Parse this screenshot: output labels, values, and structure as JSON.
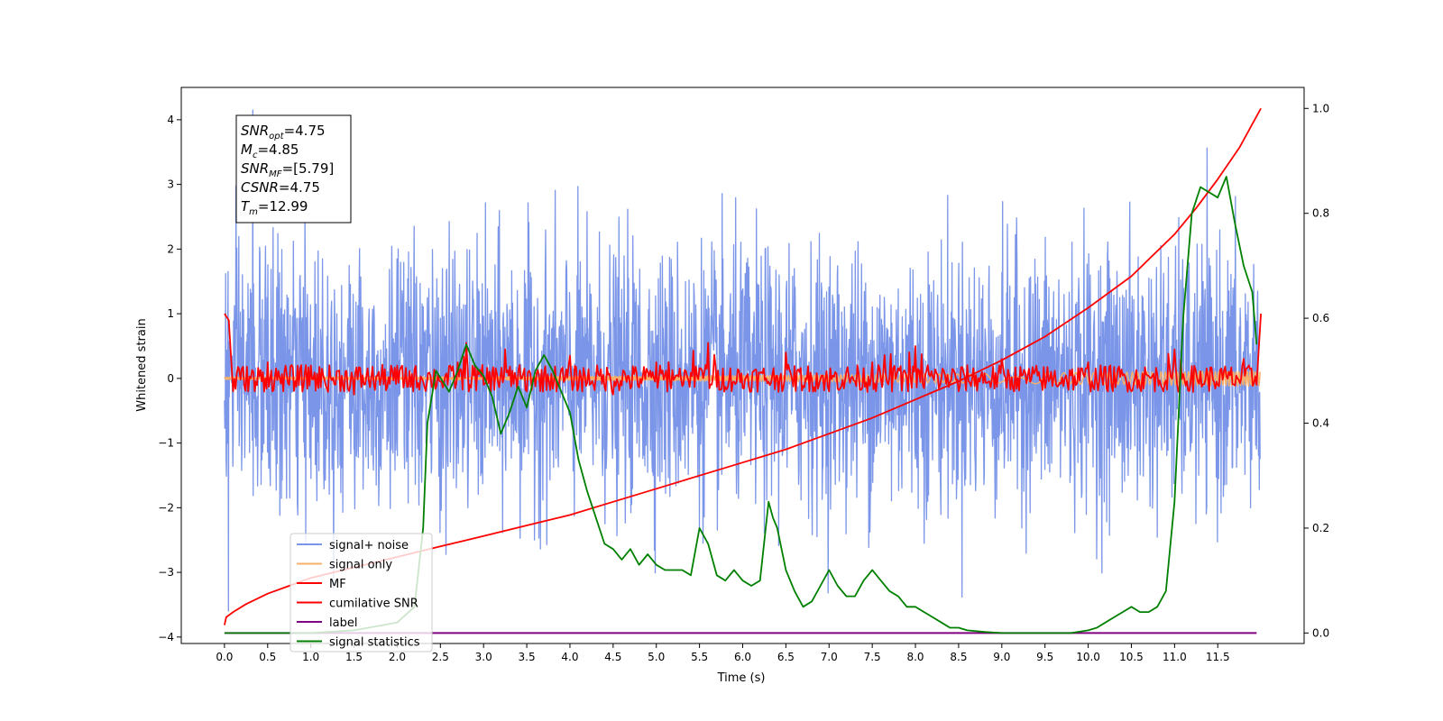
{
  "chart_data": {
    "type": "line",
    "xlabel": "Time (s)",
    "ylabel": "Whitened strain",
    "xlim": [
      -0.5,
      12.5
    ],
    "ylim": [
      -4.1,
      4.5
    ],
    "y2lim": [
      -0.02,
      1.04
    ],
    "x_ticks": [
      0.0,
      0.5,
      1.0,
      1.5,
      2.0,
      2.5,
      3.0,
      3.5,
      4.0,
      4.5,
      5.0,
      5.5,
      6.0,
      6.5,
      7.0,
      7.5,
      8.0,
      8.5,
      9.0,
      9.5,
      10.0,
      10.5,
      11.0,
      11.5
    ],
    "x_tick_labels": [
      "0.0",
      "0.5",
      "1.0",
      "1.5",
      "2.0",
      "2.5",
      "3.0",
      "3.5",
      "4.0",
      "4.5",
      "5.0",
      "5.5",
      "6.0",
      "6.5",
      "7.0",
      "7.5",
      "8.0",
      "8.5",
      "9.0",
      "9.5",
      "10.0",
      "10.5",
      "11.0",
      "11.5"
    ],
    "y_ticks": [
      4,
      3,
      2,
      1,
      0,
      -1,
      -2,
      -3,
      -4
    ],
    "y_tick_labels": [
      "4",
      "3",
      "2",
      "1",
      "0",
      "−1",
      "−2",
      "−3",
      "−4"
    ],
    "y2_ticks": [
      1.0,
      0.8,
      0.6,
      0.4,
      0.2,
      0.0
    ],
    "y2_tick_labels": [
      "1.0",
      "0.8",
      "0.6",
      "0.4",
      "0.2",
      "0.0"
    ],
    "grid": false,
    "legend_position": "lower-left",
    "colors": {
      "signal_noise": "#7b96e8",
      "signal_only": "#f7b06a",
      "mf": "#ff0000",
      "cumulative_snr": "#ff0000",
      "label": "#800080",
      "statistics": "#008000"
    },
    "legend": [
      {
        "name": "signal+ noise",
        "color": "#7b96e8"
      },
      {
        "name": "signal only",
        "color": "#f7b06a"
      },
      {
        "name": "MF",
        "color": "#ff0000"
      },
      {
        "name": "cumilative SNR",
        "color": "#ff0000"
      },
      {
        "name": "label",
        "color": "#800080"
      },
      {
        "name": "signal statistics",
        "color": "#008000"
      }
    ],
    "annotation": [
      {
        "base": "SNR",
        "sub": "opt",
        "value": "=4.75"
      },
      {
        "base": "M",
        "sub": "c",
        "value": "=4.85"
      },
      {
        "base": "SNR",
        "sub": "MF",
        "value": "=[5.79]"
      },
      {
        "base": "CSNR",
        "sub": "",
        "value": "=4.75"
      },
      {
        "base": "T",
        "sub": "m",
        "value": "=12.99"
      }
    ],
    "series": [
      {
        "name": "signal+ noise",
        "axis": "left",
        "style": "noise",
        "x_range": [
          0.0,
          11.99
        ],
        "amplitude": 1.0,
        "peak": [
          0.33,
          4.15
        ],
        "trough": [
          0.05,
          -3.6
        ]
      },
      {
        "name": "signal only",
        "axis": "left",
        "style": "chirp",
        "x_range": [
          0.0,
          11.99
        ],
        "amplitude_start": 0.02,
        "amplitude_end": 0.12
      },
      {
        "name": "MF",
        "axis": "left",
        "x": [
          0.0,
          0.05,
          0.1,
          0.2,
          0.35,
          0.5,
          0.75,
          1.0,
          1.5,
          2.0,
          2.5,
          2.7,
          2.8,
          3.0,
          3.25,
          3.5,
          4.0,
          4.5,
          5.0,
          5.6,
          6.0,
          6.5,
          7.0,
          7.5,
          8.0,
          8.5,
          9.0,
          9.5,
          10.0,
          10.5,
          11.0,
          11.5,
          11.8,
          11.95,
          12.0
        ],
        "values": [
          1.0,
          0.9,
          -0.2,
          0.15,
          -0.2,
          0.25,
          -0.1,
          0.2,
          -0.25,
          0.2,
          -0.05,
          0.25,
          0.55,
          -0.1,
          0.45,
          -0.2,
          0.35,
          -0.25,
          0.25,
          0.55,
          -0.15,
          0.4,
          -0.2,
          0.25,
          0.5,
          -0.2,
          0.3,
          -0.15,
          0.25,
          -0.2,
          0.45,
          -0.1,
          0.3,
          -0.1,
          1.0
        ]
      },
      {
        "name": "cumilative SNR",
        "axis": "right",
        "x": [
          0.0,
          0.02,
          0.1,
          0.25,
          0.5,
          0.75,
          1.0,
          1.5,
          2.0,
          2.5,
          3.0,
          3.5,
          4.0,
          4.5,
          5.0,
          5.5,
          6.0,
          6.5,
          7.0,
          7.5,
          8.0,
          8.5,
          9.0,
          9.5,
          10.0,
          10.5,
          11.0,
          11.25,
          11.5,
          11.75,
          12.0
        ],
        "values": [
          0.015,
          0.03,
          0.04,
          0.055,
          0.075,
          0.09,
          0.105,
          0.125,
          0.145,
          0.165,
          0.185,
          0.205,
          0.225,
          0.25,
          0.275,
          0.3,
          0.325,
          0.35,
          0.38,
          0.41,
          0.445,
          0.48,
          0.52,
          0.565,
          0.62,
          0.68,
          0.76,
          0.81,
          0.865,
          0.925,
          1.0
        ]
      },
      {
        "name": "label",
        "axis": "right",
        "x": [
          0.0,
          11.95
        ],
        "values": [
          0.0,
          0.0
        ]
      },
      {
        "name": "signal statistics",
        "axis": "right",
        "x": [
          0.0,
          1.0,
          1.5,
          2.0,
          2.2,
          2.3,
          2.35,
          2.45,
          2.6,
          2.7,
          2.8,
          2.9,
          3.0,
          3.1,
          3.2,
          3.3,
          3.4,
          3.5,
          3.6,
          3.7,
          3.8,
          3.9,
          4.0,
          4.1,
          4.2,
          4.3,
          4.4,
          4.5,
          4.6,
          4.7,
          4.8,
          4.9,
          5.0,
          5.1,
          5.2,
          5.3,
          5.4,
          5.5,
          5.6,
          5.7,
          5.8,
          5.9,
          6.0,
          6.1,
          6.2,
          6.3,
          6.35,
          6.4,
          6.5,
          6.6,
          6.7,
          6.8,
          6.9,
          7.0,
          7.1,
          7.2,
          7.3,
          7.4,
          7.5,
          7.6,
          7.7,
          7.8,
          7.9,
          8.0,
          8.1,
          8.2,
          8.3,
          8.4,
          8.5,
          8.6,
          8.8,
          9.0,
          9.5,
          9.8,
          10.0,
          10.1,
          10.2,
          10.3,
          10.4,
          10.5,
          10.6,
          10.7,
          10.8,
          10.9,
          11.0,
          11.1,
          11.2,
          11.3,
          11.4,
          11.5,
          11.6,
          11.7,
          11.8,
          11.9,
          11.95
        ],
        "values": [
          0.0,
          0.0,
          0.005,
          0.02,
          0.05,
          0.2,
          0.4,
          0.5,
          0.46,
          0.5,
          0.55,
          0.51,
          0.49,
          0.45,
          0.38,
          0.42,
          0.47,
          0.43,
          0.5,
          0.53,
          0.5,
          0.46,
          0.42,
          0.33,
          0.27,
          0.22,
          0.17,
          0.16,
          0.14,
          0.16,
          0.13,
          0.15,
          0.13,
          0.12,
          0.12,
          0.12,
          0.11,
          0.2,
          0.17,
          0.11,
          0.1,
          0.12,
          0.1,
          0.09,
          0.1,
          0.25,
          0.22,
          0.2,
          0.12,
          0.08,
          0.05,
          0.06,
          0.09,
          0.12,
          0.09,
          0.07,
          0.07,
          0.1,
          0.12,
          0.1,
          0.08,
          0.07,
          0.05,
          0.05,
          0.04,
          0.03,
          0.02,
          0.01,
          0.01,
          0.005,
          0.002,
          0.0,
          0.0,
          0.0,
          0.005,
          0.01,
          0.02,
          0.03,
          0.04,
          0.05,
          0.04,
          0.04,
          0.05,
          0.08,
          0.25,
          0.6,
          0.8,
          0.85,
          0.84,
          0.83,
          0.87,
          0.78,
          0.7,
          0.65,
          0.55
        ]
      }
    ]
  }
}
